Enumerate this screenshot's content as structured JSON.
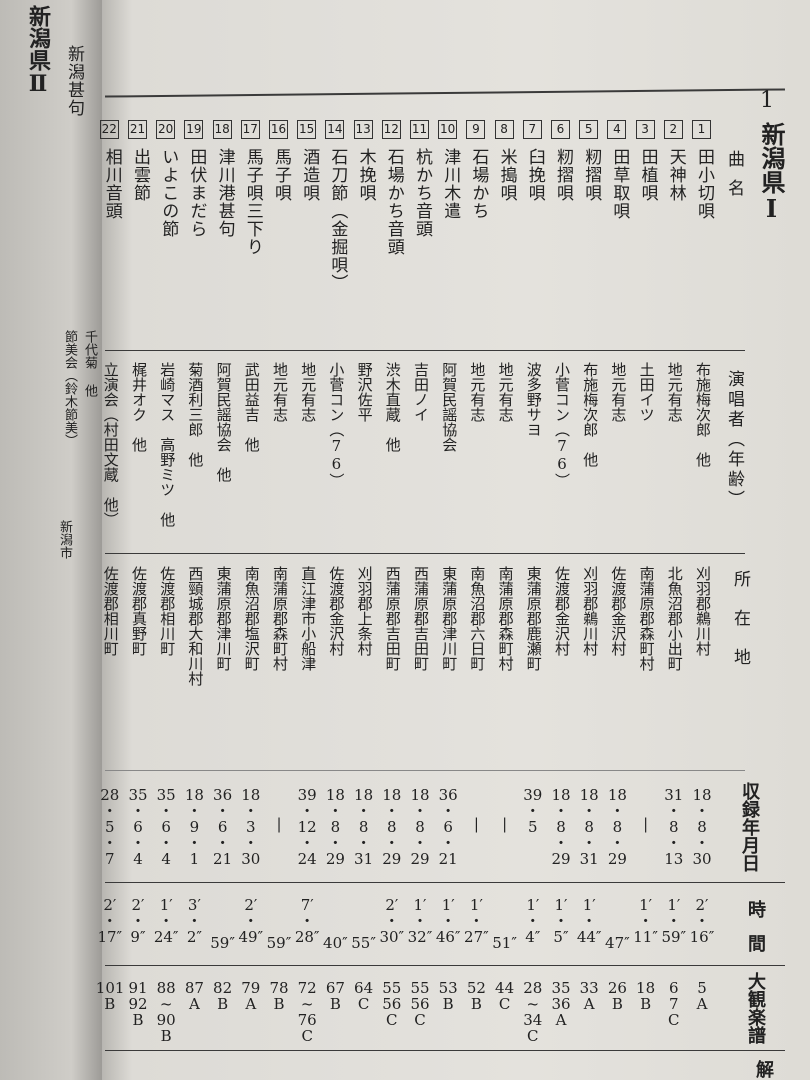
{
  "page_mark": "1",
  "section_title": "新潟県Ⅰ",
  "headers": {
    "song": "曲名",
    "singer": "演唱者（年齢）",
    "place": "所在地",
    "date": "収録年月日",
    "time": "時間",
    "score": "大観楽譜",
    "note": "解"
  },
  "left_page": {
    "title": "新潟県Ⅱ",
    "song": "新潟甚句",
    "singer_a": "千代菊 他",
    "singer_b": "節美会（鈴木節美）",
    "place": "新潟市"
  },
  "rows": [
    {
      "no": "1",
      "song": "田小切唄",
      "singer": "布施梅次郎　他",
      "place": "刈羽郡鵜川村",
      "date": [
        "18",
        "8",
        "30"
      ],
      "time": [
        "2′",
        "16″"
      ],
      "score": [
        "5",
        "A"
      ]
    },
    {
      "no": "2",
      "song": "天神林",
      "singer": "地元有志",
      "place": "北魚沼郡小出町",
      "date": [
        "31",
        "8",
        "13"
      ],
      "time": [
        "1′",
        "59″"
      ],
      "score": [
        "6",
        "7",
        "C"
      ]
    },
    {
      "no": "3",
      "song": "田植唄",
      "singer": "土田イツ",
      "place": "南蒲原郡森町村",
      "date": [
        "―"
      ],
      "time": [
        "1′",
        "11″"
      ],
      "score": [
        "18",
        "B"
      ]
    },
    {
      "no": "4",
      "song": "田草取唄",
      "singer": "地元有志",
      "place": "佐渡郡金沢村",
      "date": [
        "18",
        "8",
        "29"
      ],
      "time": [
        "47″"
      ],
      "score": [
        "26",
        "B"
      ]
    },
    {
      "no": "5",
      "song": "籾摺唄",
      "singer": "布施梅次郎　他",
      "place": "刈羽郡鵜川村",
      "date": [
        "18",
        "8",
        "31"
      ],
      "time": [
        "1′",
        "44″"
      ],
      "score": [
        "33",
        "A"
      ]
    },
    {
      "no": "6",
      "song": "籾摺唄",
      "singer": "小菅コン（76）",
      "place": "佐渡郡金沢村",
      "date": [
        "18",
        "8",
        "29"
      ],
      "time": [
        "1′",
        "5″"
      ],
      "score": [
        "35",
        "36",
        "A"
      ]
    },
    {
      "no": "7",
      "song": "臼挽唄",
      "singer": "波多野サヨ",
      "place": "東蒲原郡鹿瀬町",
      "date": [
        "39",
        "5"
      ],
      "time": [
        "1′",
        "4″"
      ],
      "score": [
        "28",
        "~",
        "34",
        "C"
      ]
    },
    {
      "no": "8",
      "song": "米搗唄",
      "singer": "地元有志",
      "place": "南蒲原郡森町村",
      "date": [
        "―"
      ],
      "time": [
        "51″"
      ],
      "score": [
        "44",
        "C"
      ]
    },
    {
      "no": "9",
      "song": "石場かち",
      "singer": "地元有志",
      "place": "南魚沼郡六日町",
      "date": [
        "―"
      ],
      "time": [
        "1′",
        "27″"
      ],
      "score": [
        "52",
        "B"
      ]
    },
    {
      "no": "10",
      "song": "津川木遣",
      "singer": "阿賀民謡協会",
      "place": "東蒲原郡津川町",
      "date": [
        "36",
        "6",
        "21"
      ],
      "time": [
        "1′",
        "46″"
      ],
      "score": [
        "53",
        "B"
      ]
    },
    {
      "no": "11",
      "song": "杭かち音頭",
      "singer": "吉田ノイ",
      "place": "西蒲原郡吉田町",
      "date": [
        "18",
        "8",
        "29"
      ],
      "time": [
        "1′",
        "32″"
      ],
      "score": [
        "55",
        "56",
        "C"
      ]
    },
    {
      "no": "12",
      "song": "石場かち音頭",
      "singer": "渋木直蔵　他",
      "place": "西蒲原郡吉田町",
      "date": [
        "18",
        "8",
        "29"
      ],
      "time": [
        "2′",
        "30″"
      ],
      "score": [
        "55",
        "56",
        "C"
      ]
    },
    {
      "no": "13",
      "song": "木挽唄",
      "singer": "野沢佐平",
      "place": "刈羽郡上条村",
      "date": [
        "18",
        "8",
        "31"
      ],
      "time": [
        "55″"
      ],
      "score": [
        "64",
        "C"
      ]
    },
    {
      "no": "14",
      "song": "石刀節（金掘唄）",
      "singer": "小菅コン（76）",
      "place": "佐渡郡金沢村",
      "date": [
        "18",
        "8",
        "29"
      ],
      "time": [
        "40″"
      ],
      "score": [
        "67",
        "B"
      ]
    },
    {
      "no": "15",
      "song": "酒造唄",
      "singer": "地元有志",
      "place": "直江津市小船津",
      "date": [
        "39",
        "12",
        "24"
      ],
      "time": [
        "7′",
        "28″"
      ],
      "score": [
        "72",
        "~",
        "76",
        "C"
      ]
    },
    {
      "no": "16",
      "song": "馬子唄",
      "singer": "地元有志",
      "place": "南蒲原郡森町村",
      "date": [
        "―"
      ],
      "time": [
        "59″"
      ],
      "score": [
        "78",
        "B"
      ]
    },
    {
      "no": "17",
      "song": "馬子唄三下り",
      "singer": "武田益吉　他",
      "place": "南魚沼郡塩沢町",
      "date": [
        "18",
        "3",
        "30"
      ],
      "time": [
        "2′",
        "49″"
      ],
      "score": [
        "79",
        "A"
      ]
    },
    {
      "no": "18",
      "song": "津川港甚句",
      "singer": "阿賀民謡協会　他",
      "place": "東蒲原郡津川町",
      "date": [
        "36",
        "6",
        "21"
      ],
      "time": [
        "59″"
      ],
      "score": [
        "82",
        "B"
      ]
    },
    {
      "no": "19",
      "song": "田伏まだら",
      "singer": "菊酒利三郎　他",
      "place": "西頸城郡大和川村",
      "date": [
        "18",
        "9",
        "1"
      ],
      "time": [
        "3′",
        "2″"
      ],
      "score": [
        "87",
        "A"
      ]
    },
    {
      "no": "20",
      "song": "いよこの節",
      "singer": "岩崎マス　高野ミツ　他",
      "place": "佐渡郡相川町",
      "date": [
        "35",
        "6",
        "4"
      ],
      "time": [
        "1′",
        "24″"
      ],
      "score": [
        "88",
        "~",
        "90",
        "B"
      ]
    },
    {
      "no": "21",
      "song": "出雲節",
      "singer": "梶井オク　他",
      "place": "佐渡郡真野町",
      "date": [
        "35",
        "6",
        "4"
      ],
      "time": [
        "2′",
        "9″"
      ],
      "score": [
        "91",
        "92",
        "B"
      ]
    },
    {
      "no": "22",
      "song": "相川音頭",
      "singer": "立演会（村田文蔵　他）",
      "place": "佐渡郡相川町",
      "date": [
        "28",
        "5",
        "7"
      ],
      "time": [
        "2′",
        "17″"
      ],
      "score": [
        "101",
        "B"
      ]
    }
  ]
}
